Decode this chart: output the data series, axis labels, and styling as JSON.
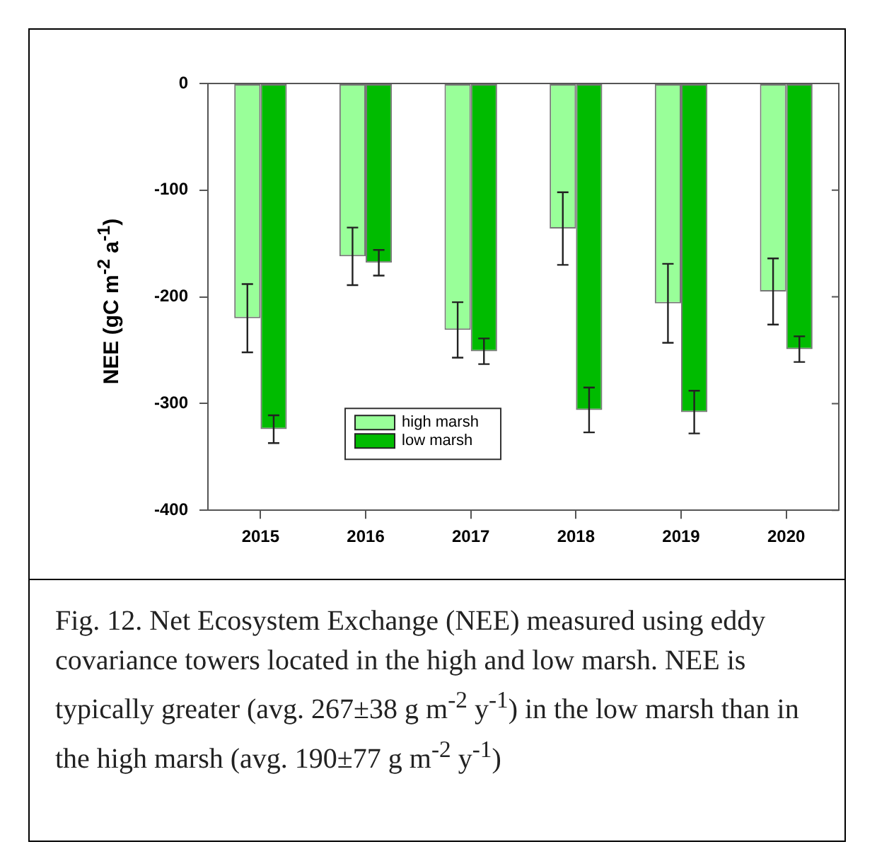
{
  "chart_data": {
    "type": "bar",
    "ylabel": "NEE (gC m$^{-2}$ a$^{-1}$)",
    "categories": [
      "2015",
      "2016",
      "2017",
      "2018",
      "2019",
      "2020"
    ],
    "series": [
      {
        "name": "high marsh",
        "color": "#99ff99",
        "values": [
          -220,
          -162,
          -231,
          -136,
          -206,
          -195
        ],
        "errors": [
          32,
          27,
          26,
          34,
          37,
          31
        ]
      },
      {
        "name": "low marsh",
        "color": "#00bb00",
        "values": [
          -324,
          -168,
          -251,
          -306,
          -308,
          -249
        ],
        "errors": [
          13,
          12,
          12,
          21,
          20,
          12
        ]
      }
    ],
    "ylim": [
      -400,
      0
    ],
    "yticks": [
      -400,
      -300,
      -200,
      -100,
      0
    ],
    "grid": false,
    "legend": "bottom left",
    "annotations": [
      "Fig. 12. Net Ecosystem Exchange (NEE) measured using eddy covariance towers located in the high and low marsh.  NEE is typically greater (avg. 267±38 g m$^{-2}$ y$^{-1}$) in the low marsh than in the high marsh (avg. 190±77 g m$^{-2}$ y$^{-1}$)"
    ]
  }
}
